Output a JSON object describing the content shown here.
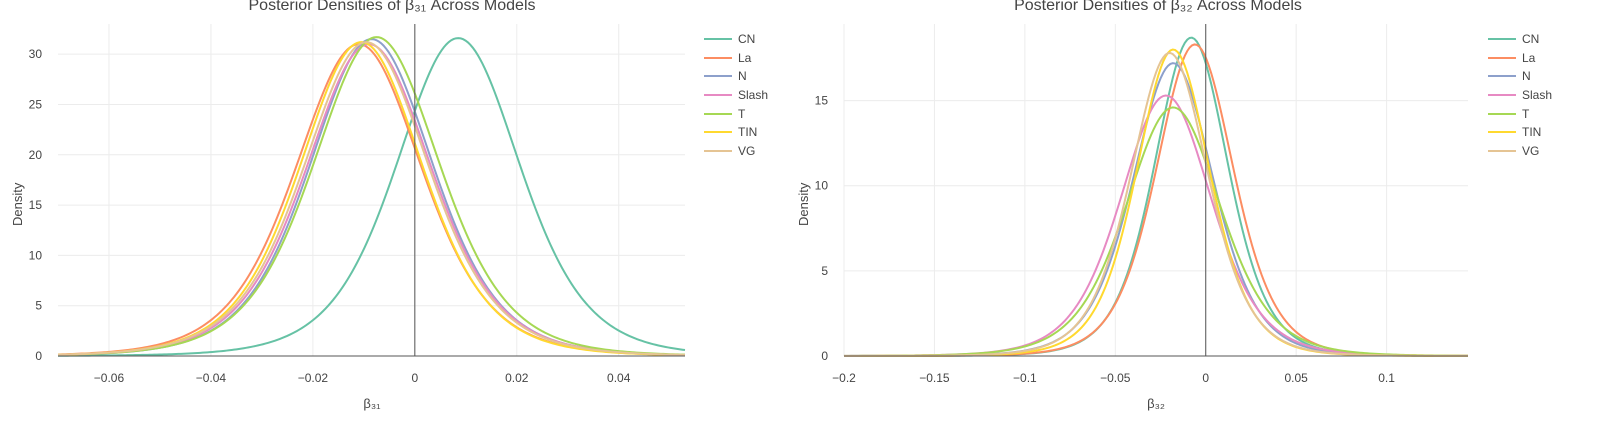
{
  "charts": [
    {
      "id": "left",
      "title": "Posterior Densities of β₃₁ Across Models",
      "xlabel": "β₃₁",
      "ylabel": "Density",
      "legend": [
        "CN",
        "La",
        "N",
        "Slash",
        "T",
        "TIN",
        "VG"
      ]
    },
    {
      "id": "right",
      "title": "Posterior Densities of β₃₂ Across Models",
      "xlabel": "β₃₂",
      "ylabel": "Density",
      "legend": [
        "CN",
        "La",
        "N",
        "Slash",
        "T",
        "TIN",
        "VG"
      ]
    }
  ],
  "chart_data": [
    {
      "type": "line",
      "title": "Posterior Densities of β₃₁ Across Models",
      "xlabel": "β₃₁",
      "ylabel": "Density",
      "xlim": [
        -0.07,
        0.053
      ],
      "ylim": [
        0,
        33
      ],
      "xticks": [
        -0.06,
        -0.04,
        -0.02,
        0,
        0.02,
        0.04
      ],
      "xtick_labels": [
        "−0.06",
        "−0.04",
        "−0.02",
        "0",
        "0.02",
        "0.04"
      ],
      "yticks": [
        0,
        5,
        10,
        15,
        20,
        25,
        30
      ],
      "vline_x": 0,
      "grid": true,
      "legend_position": "right",
      "series": [
        {
          "name": "CN",
          "color": "#66c2a5",
          "mode": 0.0085,
          "sd": 0.0125,
          "peak": 31.6
        },
        {
          "name": "La",
          "color": "#fc8d62",
          "mode": -0.011,
          "sd": 0.0128,
          "peak": 31.0
        },
        {
          "name": "N",
          "color": "#8da0cb",
          "mode": -0.0085,
          "sd": 0.0125,
          "peak": 31.5
        },
        {
          "name": "Slash",
          "color": "#e78ac3",
          "mode": -0.009,
          "sd": 0.0127,
          "peak": 31.0
        },
        {
          "name": "T",
          "color": "#a6d854",
          "mode": -0.0075,
          "sd": 0.0128,
          "peak": 31.7
        },
        {
          "name": "TIN",
          "color": "#ffd92f",
          "mode": -0.0105,
          "sd": 0.0125,
          "peak": 31.2
        },
        {
          "name": "VG",
          "color": "#e5c494",
          "mode": -0.0095,
          "sd": 0.0127,
          "peak": 31.2
        }
      ]
    },
    {
      "type": "line",
      "title": "Posterior Densities of β₃₂ Across Models",
      "xlabel": "β₃₂",
      "ylabel": "Density",
      "xlim": [
        -0.2,
        0.145
      ],
      "ylim": [
        0,
        19.5
      ],
      "xticks": [
        -0.2,
        -0.15,
        -0.1,
        -0.05,
        0,
        0.05,
        0.1
      ],
      "xtick_labels": [
        "−0.2",
        "−0.15",
        "−0.1",
        "−0.05",
        "0",
        "0.05",
        "0.1"
      ],
      "yticks": [
        0,
        5,
        10,
        15
      ],
      "vline_x": 0,
      "grid": true,
      "legend_position": "right",
      "series": [
        {
          "name": "CN",
          "color": "#66c2a5",
          "mode": -0.008,
          "sd": 0.021,
          "peak": 18.7
        },
        {
          "name": "La",
          "color": "#fc8d62",
          "mode": -0.006,
          "sd": 0.022,
          "peak": 18.3
        },
        {
          "name": "N",
          "color": "#8da0cb",
          "mode": -0.018,
          "sd": 0.023,
          "peak": 17.2
        },
        {
          "name": "Slash",
          "color": "#e78ac3",
          "mode": -0.022,
          "sd": 0.026,
          "peak": 15.3
        },
        {
          "name": "T",
          "color": "#a6d854",
          "mode": -0.018,
          "sd": 0.027,
          "peak": 14.6
        },
        {
          "name": "TIN",
          "color": "#ffd92f",
          "mode": -0.018,
          "sd": 0.021,
          "peak": 18.0
        },
        {
          "name": "VG",
          "color": "#e5c494",
          "mode": -0.02,
          "sd": 0.022,
          "peak": 17.8
        }
      ]
    }
  ]
}
